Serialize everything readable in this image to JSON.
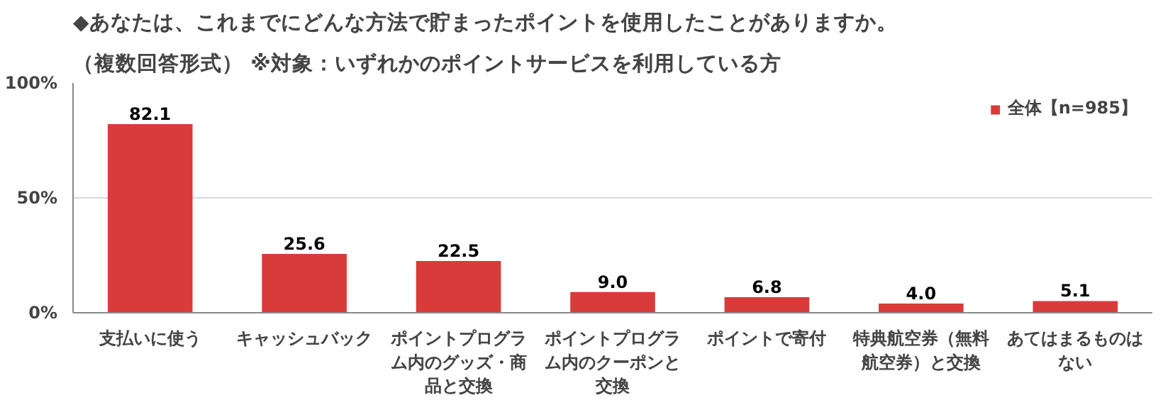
{
  "chart_data": {
    "type": "bar",
    "title": "◆あなたは、これまでにどんな方法で貯まったポイントを使用したことがありますか。",
    "subtitle": "（複数回答形式） ※対象：いずれかのポイントサービスを利用している方",
    "categories": [
      "支払いに使う",
      "キャッシュバック",
      "ポイントプログラム内のグッズ・商品と交換",
      "ポイントプログラム内のクーポンと交換",
      "ポイントで寄付",
      "特典航空券（無料航空券）と交換",
      "あてはまるものはない"
    ],
    "series": [
      {
        "name": "全体【n=985】",
        "color": "#d93a3a",
        "values": [
          82.1,
          25.6,
          22.5,
          9.0,
          6.8,
          4.0,
          5.1
        ]
      }
    ],
    "value_labels": [
      "82.1",
      "25.6",
      "22.5",
      "9.0",
      "6.8",
      "4.0",
      "5.1"
    ],
    "ylim": [
      0,
      100
    ],
    "yticks": [
      {
        "value": 0,
        "label": "0%"
      },
      {
        "value": 50,
        "label": "50%"
      },
      {
        "value": 100,
        "label": "100%"
      }
    ],
    "grid": "y",
    "legend": "top right"
  }
}
